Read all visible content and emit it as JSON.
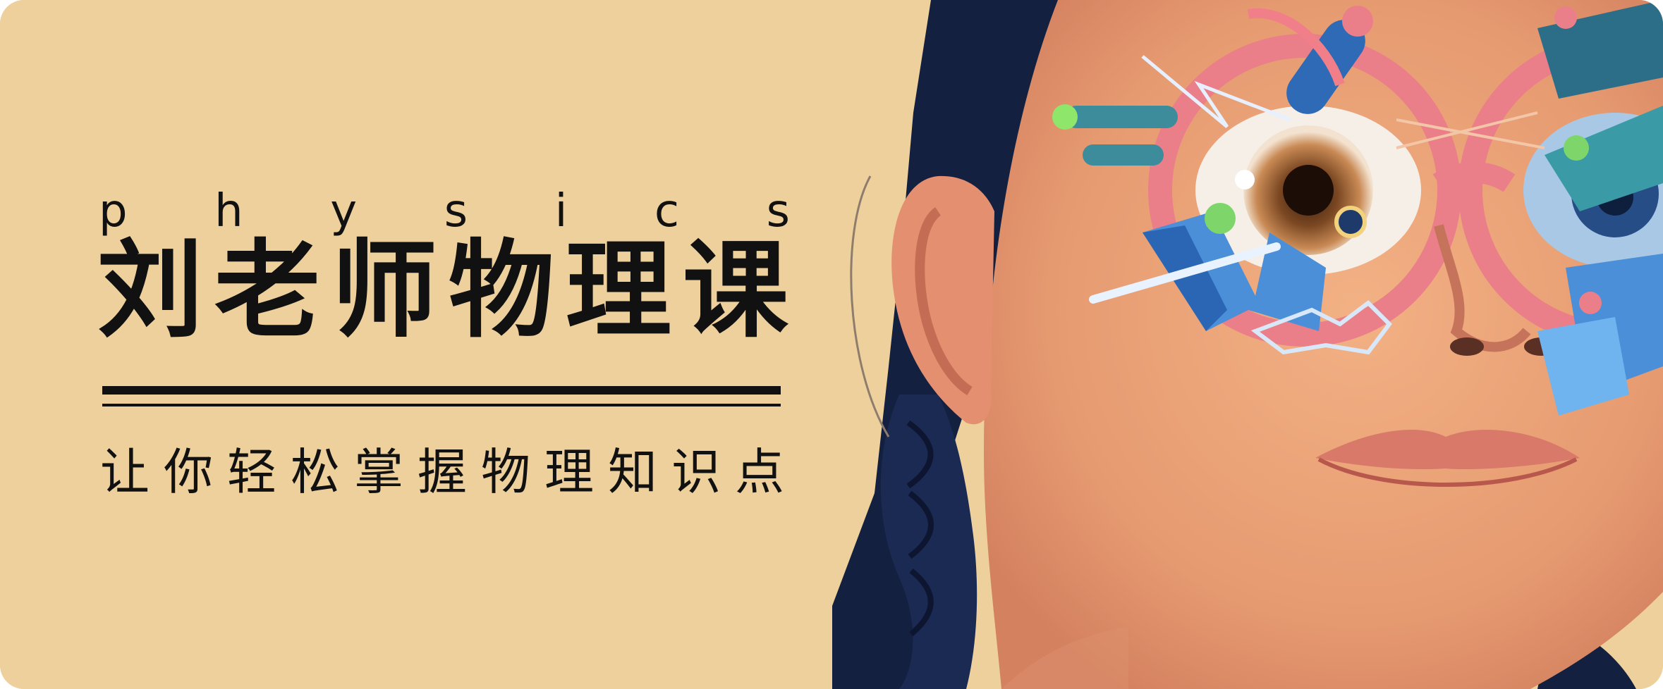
{
  "banner": {
    "kicker": [
      "p",
      "h",
      "y",
      "s",
      "i",
      "c",
      "s"
    ],
    "title": [
      "刘",
      "老",
      "师",
      "物",
      "理",
      "课"
    ],
    "subtitle": [
      "让",
      "你",
      "轻",
      "松",
      "掌",
      "握",
      "物",
      "理",
      "知",
      "识",
      "点"
    ]
  },
  "colors": {
    "background": "#edd09c",
    "text": "#111111",
    "skin": "#e9a27a",
    "hair": "#14203f",
    "glasses_pink": "#ea7f8a",
    "accent_blue": "#4a8fd8",
    "accent_green": "#7ed66a"
  },
  "illustration": {
    "subject": "girl-with-braids-and-geometric-glasses"
  }
}
